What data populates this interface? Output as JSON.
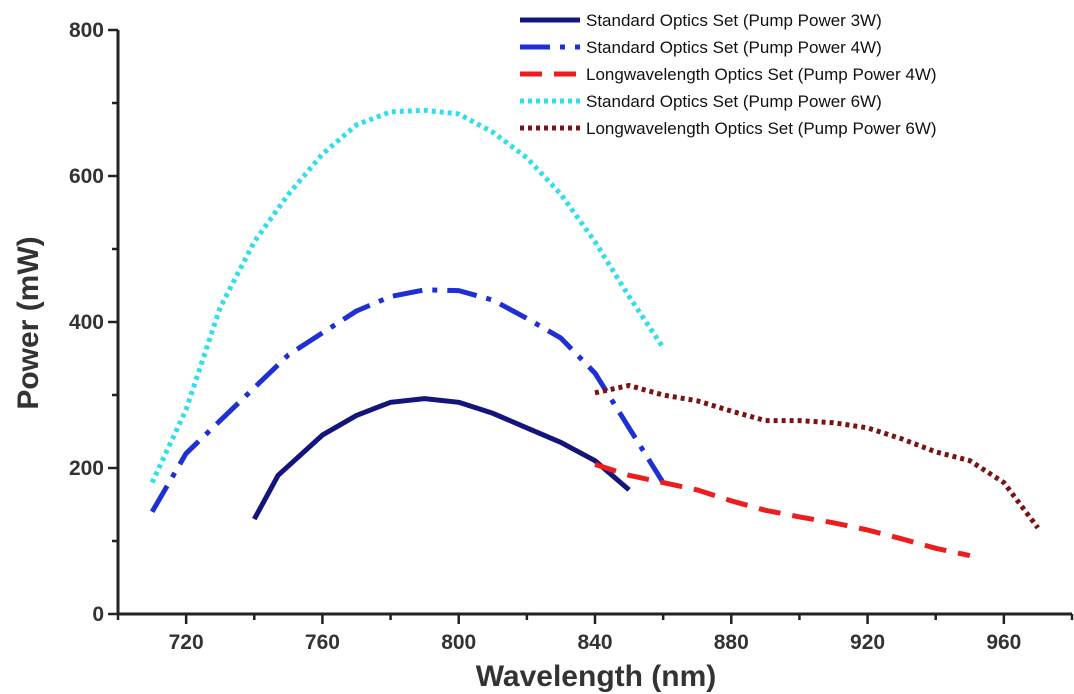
{
  "chart_data": {
    "type": "line",
    "xlabel": "Wavelength (nm)",
    "ylabel": "Power (mW)",
    "xlim": [
      700,
      980
    ],
    "ylim": [
      0,
      800
    ],
    "xticks": [
      720,
      760,
      800,
      840,
      880,
      920,
      960
    ],
    "yticks": [
      0,
      200,
      400,
      600,
      800
    ],
    "grid": false,
    "legend_position": "top-right",
    "series": [
      {
        "name": "Standard Optics Set (Pump Power 3W)",
        "color": "#14147a",
        "style": "solid",
        "x": [
          740,
          747,
          760,
          770,
          780,
          790,
          800,
          810,
          820,
          830,
          840,
          850
        ],
        "y": [
          130,
          190,
          245,
          272,
          290,
          295,
          290,
          275,
          255,
          235,
          210,
          170
        ]
      },
      {
        "name": "Standard Optics Set (Pump Power 4W)",
        "color": "#1f2fd6",
        "style": "dash-dot",
        "x": [
          710,
          720,
          730,
          740,
          750,
          760,
          770,
          780,
          790,
          800,
          810,
          820,
          830,
          840,
          850,
          860
        ],
        "y": [
          140,
          220,
          265,
          310,
          355,
          385,
          415,
          435,
          444,
          443,
          430,
          405,
          378,
          330,
          255,
          180
        ]
      },
      {
        "name": "Longwavelength Optics Set (Pump Power 4W)",
        "color": "#ee1c1c",
        "style": "dash",
        "x": [
          840,
          850,
          860,
          870,
          880,
          890,
          900,
          910,
          920,
          930,
          940,
          950
        ],
        "y": [
          205,
          190,
          180,
          170,
          155,
          142,
          133,
          125,
          115,
          103,
          90,
          80
        ]
      },
      {
        "name": "Standard Optics Set (Pump Power 6W)",
        "color": "#33ddee",
        "style": "dot",
        "x": [
          710,
          720,
          730,
          740,
          750,
          760,
          770,
          780,
          790,
          800,
          810,
          820,
          830,
          840,
          850,
          860
        ],
        "y": [
          180,
          280,
          420,
          510,
          575,
          630,
          670,
          688,
          690,
          685,
          660,
          625,
          575,
          510,
          435,
          365
        ]
      },
      {
        "name": "Longwavelength Optics Set (Pump Power 6W)",
        "color": "#7a1414",
        "style": "dot",
        "x": [
          840,
          850,
          860,
          870,
          880,
          890,
          900,
          910,
          920,
          930,
          940,
          950,
          960,
          970
        ],
        "y": [
          303,
          313,
          300,
          292,
          278,
          265,
          265,
          262,
          255,
          240,
          222,
          210,
          180,
          118
        ]
      }
    ]
  }
}
